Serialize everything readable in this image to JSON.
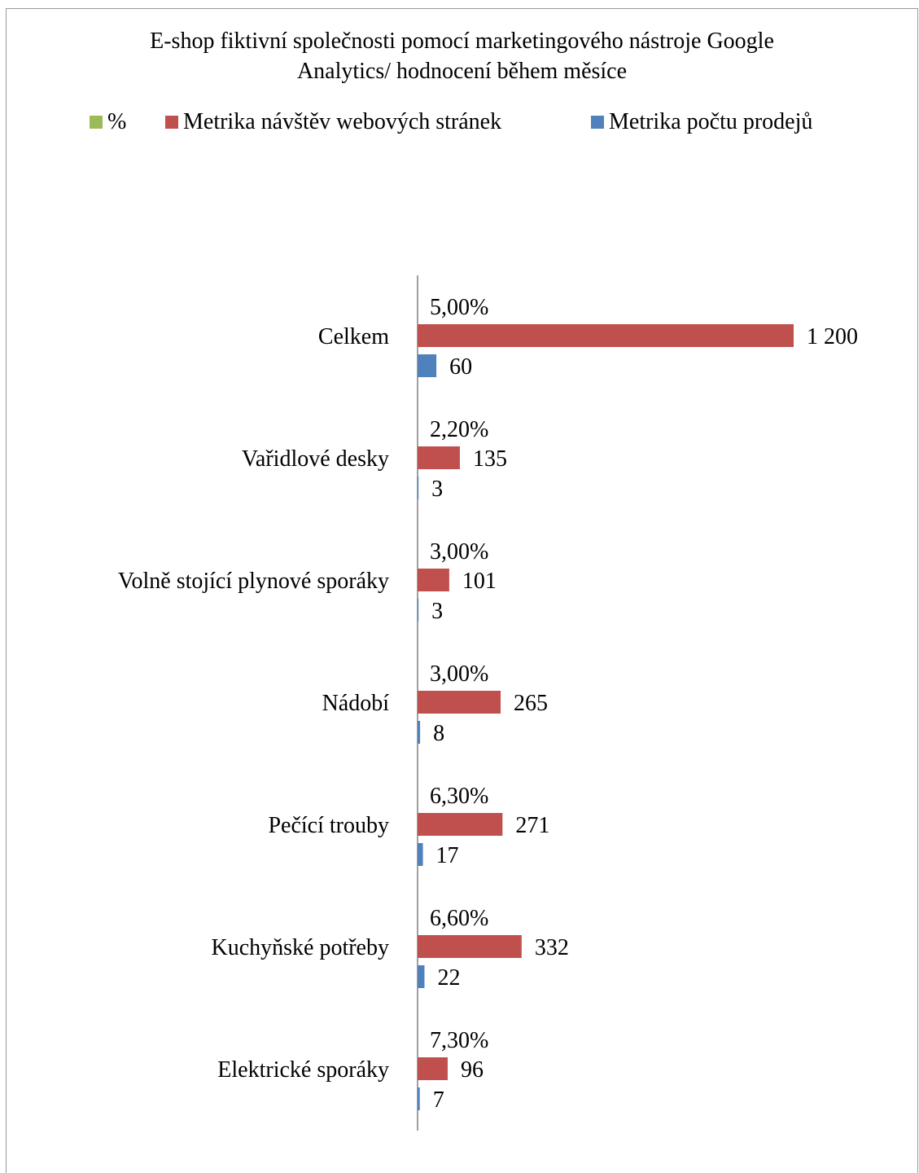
{
  "chart_data": {
    "type": "bar",
    "orientation": "horizontal",
    "title": "E-shop fiktivní společnosti pomocí marketingového nástroje Google Analytics/ hodnocení během měsíce",
    "title_lines": [
      "E-shop fiktivní společnosti pomocí marketingového nástroje Google",
      "Analytics/ hodnocení během měsíce"
    ],
    "legend_position": "top",
    "categories": [
      "Celkem",
      "Vařidlové desky",
      "Volně stojící plynové sporáky",
      "Nádobí",
      "Pečící trouby",
      "Kuchyňské potřeby",
      "Elektrické sporáky"
    ],
    "series": [
      {
        "name": "%",
        "color": "#9bbb59",
        "values": [
          0.05,
          0.022,
          0.03,
          0.03,
          0.063,
          0.066,
          0.073
        ],
        "labels": [
          "5,00%",
          "2,20%",
          "3,00%",
          "3,00%",
          "6,30%",
          "6,60%",
          "7,30%"
        ]
      },
      {
        "name": "Metrika návštěv webových stránek",
        "color": "#c0504d",
        "values": [
          1200,
          135,
          101,
          265,
          271,
          332,
          96
        ],
        "labels": [
          "1 200",
          "135",
          "101",
          "265",
          "271",
          "332",
          "96"
        ]
      },
      {
        "name": "Metrika počtu prodejů",
        "color": "#4f81bd",
        "values": [
          60,
          3,
          3,
          8,
          17,
          22,
          7
        ],
        "labels": [
          "60",
          "3",
          "3",
          "8",
          "17",
          "22",
          "7"
        ]
      }
    ],
    "xlim": [
      0,
      1200
    ],
    "grid": false
  }
}
